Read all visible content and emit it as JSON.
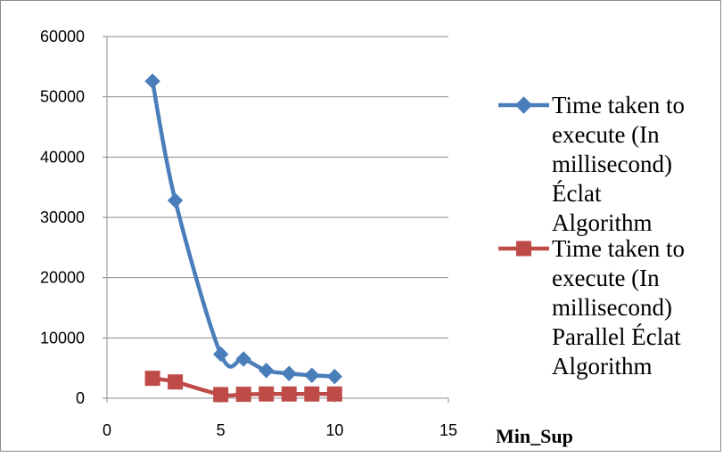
{
  "chart_data": {
    "type": "line",
    "xlabel": "Min_Sup",
    "ylabel": "",
    "xlim": [
      0,
      15
    ],
    "ylim": [
      0,
      60000
    ],
    "x_ticks": [
      0,
      5,
      10,
      15
    ],
    "y_ticks": [
      0,
      10000,
      20000,
      30000,
      40000,
      50000,
      60000
    ],
    "grid": "horizontal",
    "legend_position": "right",
    "series": [
      {
        "name": "Time taken to execute (In millisecond) Éclat Algorithm",
        "legend_lines": [
          "Time taken to",
          "execute (In",
          "millisecond)",
          "Éclat",
          "Algorithm"
        ],
        "color": "#4a7ebb",
        "marker": "diamond",
        "x": [
          2,
          3,
          5,
          6,
          7,
          8,
          9,
          10
        ],
        "y": [
          52600,
          32800,
          7300,
          6500,
          4600,
          4100,
          3800,
          3600
        ]
      },
      {
        "name": "Time taken to execute (In millisecond) Parallel Éclat Algorithm",
        "legend_lines": [
          "Time taken to",
          "execute (In",
          "millisecond)",
          "Parallel Éclat",
          "Algorithm"
        ],
        "color": "#be4b48",
        "marker": "square",
        "x": [
          2,
          3,
          5,
          6,
          7,
          8,
          9,
          10
        ],
        "y": [
          3300,
          2700,
          600,
          650,
          700,
          700,
          700,
          700
        ]
      }
    ]
  }
}
